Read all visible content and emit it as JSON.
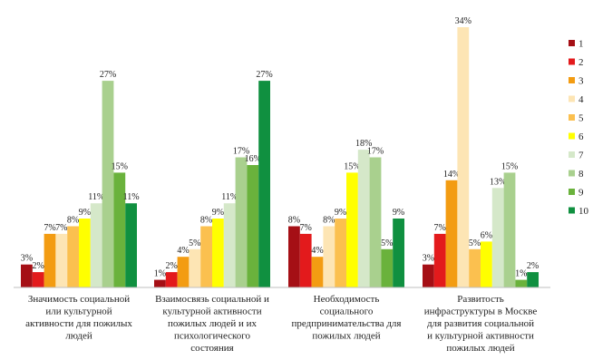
{
  "chart_data": {
    "type": "bar",
    "title": "",
    "xlabel": "",
    "ylabel": "",
    "ylim": [
      0,
      34
    ],
    "grid": false,
    "legend_position": "right",
    "categories": [
      [
        "Значимость социальной",
        "или культурной",
        "активности для пожилых",
        "людей"
      ],
      [
        "Взаимосвязь социальной и",
        "культурной активности",
        "пожилых людей и их",
        "психологического",
        "состояния"
      ],
      [
        "Необходимость",
        "социального",
        "предпринимательства для",
        "пожилых людей"
      ],
      [
        "Развитость",
        "инфраструктуры в Москве",
        "для развития социальной",
        "и культурной активности",
        "пожилых людей"
      ]
    ],
    "series": [
      {
        "name": "1",
        "color": "#a50f15",
        "values": [
          3,
          1,
          8,
          3
        ]
      },
      {
        "name": "2",
        "color": "#e31a1c",
        "values": [
          2,
          2,
          7,
          7
        ]
      },
      {
        "name": "3",
        "color": "#f39c12",
        "values": [
          7,
          4,
          4,
          14
        ]
      },
      {
        "name": "4",
        "color": "#fde5b4",
        "values": [
          7,
          5,
          8,
          34
        ]
      },
      {
        "name": "5",
        "color": "#fbc04f",
        "values": [
          8,
          8,
          9,
          5
        ]
      },
      {
        "name": "6",
        "color": "#ffff00",
        "values": [
          9,
          9,
          15,
          6
        ]
      },
      {
        "name": "7",
        "color": "#d5e8c9",
        "values": [
          11,
          11,
          18,
          13
        ]
      },
      {
        "name": "8",
        "color": "#a9d08e",
        "values": [
          27,
          17,
          17,
          15
        ]
      },
      {
        "name": "9",
        "color": "#6ab23c",
        "values": [
          15,
          16,
          5,
          1
        ]
      },
      {
        "name": "10",
        "color": "#109040",
        "values": [
          11,
          27,
          9,
          2
        ]
      }
    ],
    "value_suffix": "%"
  }
}
